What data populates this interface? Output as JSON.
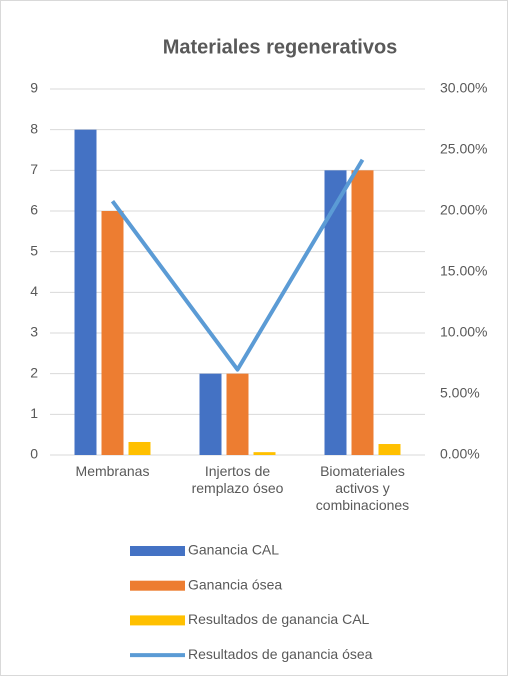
{
  "chart_data": {
    "type": "bar",
    "title": "Materiales regenerativos",
    "categories": [
      "Membranas",
      "Injertos de remplazo óseo",
      "Biomateriales activos y combinaciones"
    ],
    "series": [
      {
        "name": "Ganancia CAL",
        "color": "#4472c4",
        "type": "bar",
        "values": [
          8,
          2,
          7
        ]
      },
      {
        "name": "Ganancia ósea",
        "color": "#ed7d31",
        "type": "bar",
        "values": [
          6,
          2,
          7
        ]
      },
      {
        "name": "Resultados de ganancia CAL",
        "color": "#ffc000",
        "type": "bar",
        "values": [
          0.32,
          0.07,
          0.27
        ]
      },
      {
        "name": "Resultados de ganancia ósea",
        "color": "#5b9bd5",
        "type": "line",
        "axis": "y2",
        "values": [
          20.8,
          7.0,
          24.2
        ]
      }
    ],
    "ylim": [
      0,
      9
    ],
    "yticks": [
      0,
      1,
      2,
      3,
      4,
      5,
      6,
      7,
      8,
      9
    ],
    "y2lim": [
      0,
      30
    ],
    "y2ticks": [
      {
        "value": 0,
        "label": "0.00%"
      },
      {
        "value": 5,
        "label": "5.00%"
      },
      {
        "value": 10,
        "label": "10.00%"
      },
      {
        "value": 15,
        "label": "15.00%"
      },
      {
        "value": 20,
        "label": "20.00%"
      },
      {
        "value": 25,
        "label": "25.00%"
      },
      {
        "value": 30,
        "label": "30.00%"
      }
    ],
    "grid": true,
    "legend": "bottom"
  }
}
